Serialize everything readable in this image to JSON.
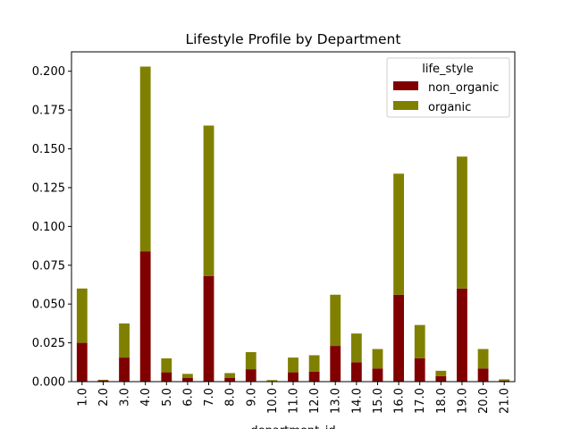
{
  "chart_data": {
    "type": "bar",
    "stacked": true,
    "title": "Lifestyle Profile by Department",
    "xlabel": "department_id",
    "ylabel": "",
    "ylim": [
      0,
      0.2125
    ],
    "yticks": [
      0.0,
      0.025,
      0.05,
      0.075,
      0.1,
      0.125,
      0.15,
      0.175,
      0.2
    ],
    "ytick_labels": [
      "0.000",
      "0.025",
      "0.050",
      "0.075",
      "0.100",
      "0.125",
      "0.150",
      "0.175",
      "0.200"
    ],
    "categories": [
      "1.0",
      "2.0",
      "3.0",
      "4.0",
      "5.0",
      "6.0",
      "7.0",
      "8.0",
      "9.0",
      "10.0",
      "11.0",
      "12.0",
      "13.0",
      "14.0",
      "15.0",
      "16.0",
      "17.0",
      "18.0",
      "19.0",
      "20.0",
      "21.0"
    ],
    "legend_title": "life_style",
    "legend_position": "top-right",
    "grid": false,
    "series": [
      {
        "name": "non_organic",
        "color": "#800000",
        "values": [
          0.025,
          0.0008,
          0.0155,
          0.084,
          0.006,
          0.0025,
          0.068,
          0.0025,
          0.008,
          0.0004,
          0.006,
          0.0065,
          0.023,
          0.0125,
          0.0085,
          0.056,
          0.015,
          0.0035,
          0.06,
          0.0085,
          0.0007
        ]
      },
      {
        "name": "organic",
        "color": "#808000",
        "values": [
          0.035,
          0.0004,
          0.022,
          0.119,
          0.009,
          0.0025,
          0.097,
          0.003,
          0.011,
          0.0006,
          0.0095,
          0.0105,
          0.033,
          0.0185,
          0.0125,
          0.078,
          0.0215,
          0.0035,
          0.085,
          0.0125,
          0.0008
        ]
      }
    ]
  }
}
